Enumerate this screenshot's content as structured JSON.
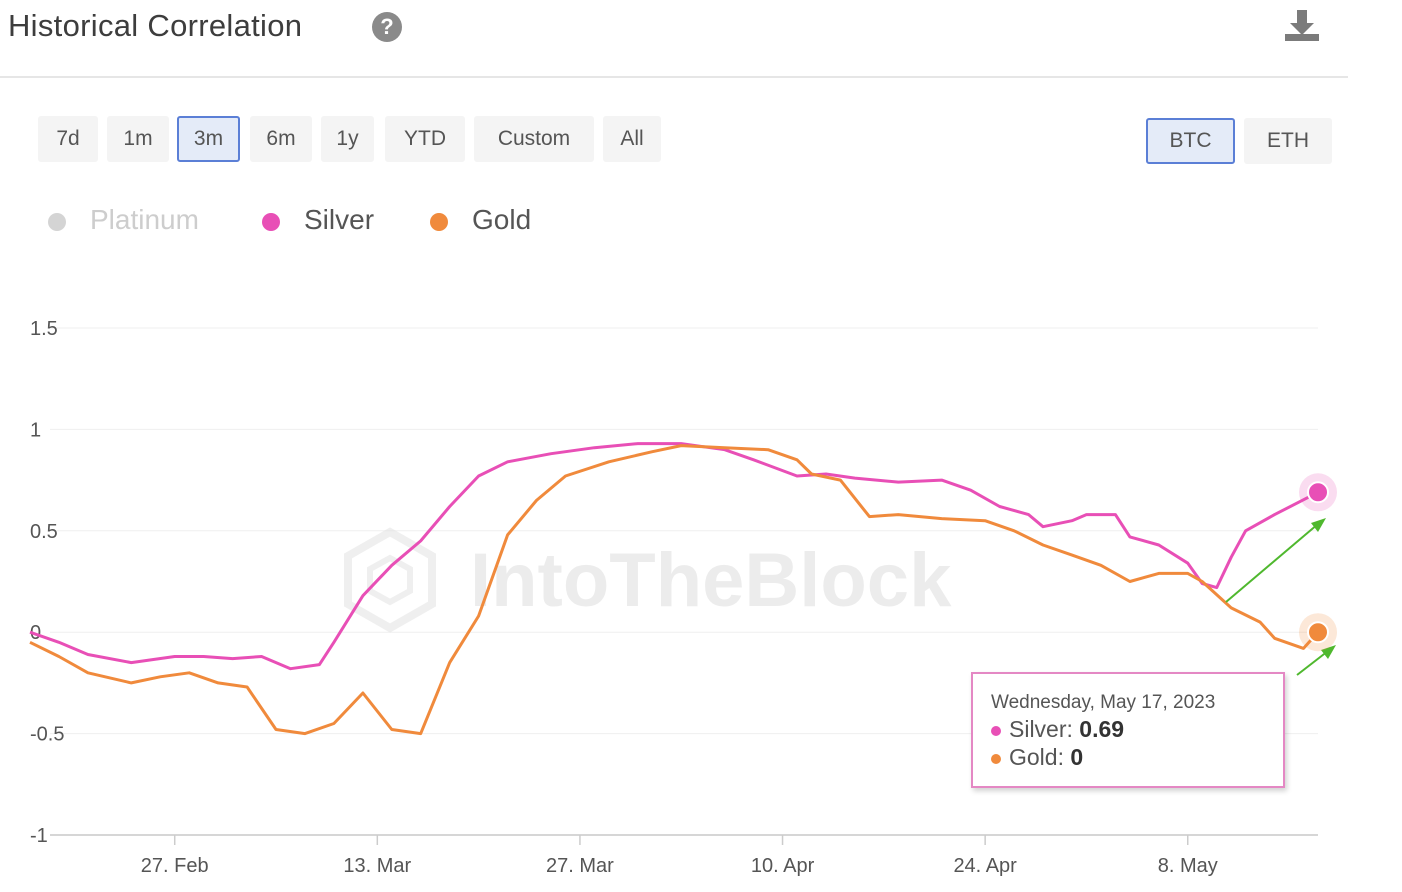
{
  "header": {
    "title": "Historical Correlation"
  },
  "range_buttons": [
    {
      "label": "7d",
      "active": false
    },
    {
      "label": "1m",
      "active": false
    },
    {
      "label": "3m",
      "active": true
    },
    {
      "label": "6m",
      "active": false
    },
    {
      "label": "1y",
      "active": false
    },
    {
      "label": "YTD",
      "active": false
    },
    {
      "label": "Custom",
      "active": false
    },
    {
      "label": "All",
      "active": false
    }
  ],
  "asset_buttons": [
    {
      "label": "BTC",
      "active": true
    },
    {
      "label": "ETH",
      "active": false
    }
  ],
  "legend": [
    {
      "label": "Platinum",
      "color": "#cfcfcf",
      "hidden": true
    },
    {
      "label": "Silver",
      "color": "#e84fb6",
      "hidden": false
    },
    {
      "label": "Gold",
      "color": "#f08a3c",
      "hidden": false
    }
  ],
  "tooltip": {
    "date": "Wednesday, May 17, 2023",
    "silver_label": "Silver: ",
    "silver_value": "0.69",
    "gold_label": "Gold: ",
    "gold_value": "0"
  },
  "watermark": "IntoTheBlock",
  "chart_data": {
    "type": "line",
    "x_start": "2023-02-17",
    "x_end": "2023-05-17",
    "xticks": [
      {
        "label": "27. Feb",
        "date": "2023-02-27"
      },
      {
        "label": "13. Mar",
        "date": "2023-03-13"
      },
      {
        "label": "27. Mar",
        "date": "2023-03-27"
      },
      {
        "label": "10. Apr",
        "date": "2023-04-10"
      },
      {
        "label": "24. Apr",
        "date": "2023-04-24"
      },
      {
        "label": "8. May",
        "date": "2023-05-08"
      }
    ],
    "yticks": [
      1.5,
      1,
      0.5,
      0,
      -0.5,
      -1
    ],
    "ylim": [
      -1,
      1.5
    ],
    "series": [
      {
        "name": "Silver",
        "color": "#e84fb6",
        "points": [
          [
            "2023-02-17",
            0.0
          ],
          [
            "2023-02-19",
            -0.05
          ],
          [
            "2023-02-21",
            -0.11
          ],
          [
            "2023-02-24",
            -0.15
          ],
          [
            "2023-02-27",
            -0.12
          ],
          [
            "2023-03-01",
            -0.12
          ],
          [
            "2023-03-03",
            -0.13
          ],
          [
            "2023-03-05",
            -0.12
          ],
          [
            "2023-03-07",
            -0.18
          ],
          [
            "2023-03-09",
            -0.16
          ],
          [
            "2023-03-10",
            -0.05
          ],
          [
            "2023-03-12",
            0.18
          ],
          [
            "2023-03-14",
            0.33
          ],
          [
            "2023-03-16",
            0.45
          ],
          [
            "2023-03-18",
            0.62
          ],
          [
            "2023-03-20",
            0.77
          ],
          [
            "2023-03-22",
            0.84
          ],
          [
            "2023-03-25",
            0.88
          ],
          [
            "2023-03-28",
            0.91
          ],
          [
            "2023-03-31",
            0.93
          ],
          [
            "2023-04-03",
            0.93
          ],
          [
            "2023-04-06",
            0.9
          ],
          [
            "2023-04-08",
            0.85
          ],
          [
            "2023-04-11",
            0.77
          ],
          [
            "2023-04-13",
            0.78
          ],
          [
            "2023-04-15",
            0.76
          ],
          [
            "2023-04-18",
            0.74
          ],
          [
            "2023-04-21",
            0.75
          ],
          [
            "2023-04-23",
            0.7
          ],
          [
            "2023-04-25",
            0.62
          ],
          [
            "2023-04-27",
            0.58
          ],
          [
            "2023-04-28",
            0.52
          ],
          [
            "2023-04-30",
            0.55
          ],
          [
            "2023-05-01",
            0.58
          ],
          [
            "2023-05-03",
            0.58
          ],
          [
            "2023-05-04",
            0.47
          ],
          [
            "2023-05-06",
            0.43
          ],
          [
            "2023-05-08",
            0.34
          ],
          [
            "2023-05-09",
            0.24
          ],
          [
            "2023-05-10",
            0.22
          ],
          [
            "2023-05-11",
            0.37
          ],
          [
            "2023-05-12",
            0.5
          ],
          [
            "2023-05-14",
            0.58
          ],
          [
            "2023-05-17",
            0.69
          ]
        ]
      },
      {
        "name": "Gold",
        "color": "#f08a3c",
        "points": [
          [
            "2023-02-17",
            -0.05
          ],
          [
            "2023-02-19",
            -0.12
          ],
          [
            "2023-02-21",
            -0.2
          ],
          [
            "2023-02-24",
            -0.25
          ],
          [
            "2023-02-26",
            -0.22
          ],
          [
            "2023-02-28",
            -0.2
          ],
          [
            "2023-03-02",
            -0.25
          ],
          [
            "2023-03-04",
            -0.27
          ],
          [
            "2023-03-06",
            -0.48
          ],
          [
            "2023-03-08",
            -0.5
          ],
          [
            "2023-03-10",
            -0.45
          ],
          [
            "2023-03-12",
            -0.3
          ],
          [
            "2023-03-14",
            -0.48
          ],
          [
            "2023-03-16",
            -0.5
          ],
          [
            "2023-03-18",
            -0.15
          ],
          [
            "2023-03-20",
            0.08
          ],
          [
            "2023-03-22",
            0.48
          ],
          [
            "2023-03-24",
            0.65
          ],
          [
            "2023-03-26",
            0.77
          ],
          [
            "2023-03-29",
            0.84
          ],
          [
            "2023-04-01",
            0.89
          ],
          [
            "2023-04-03",
            0.92
          ],
          [
            "2023-04-06",
            0.91
          ],
          [
            "2023-04-09",
            0.9
          ],
          [
            "2023-04-11",
            0.85
          ],
          [
            "2023-04-12",
            0.78
          ],
          [
            "2023-04-14",
            0.75
          ],
          [
            "2023-04-16",
            0.57
          ],
          [
            "2023-04-18",
            0.58
          ],
          [
            "2023-04-21",
            0.56
          ],
          [
            "2023-04-24",
            0.55
          ],
          [
            "2023-04-26",
            0.5
          ],
          [
            "2023-04-28",
            0.43
          ],
          [
            "2023-04-30",
            0.38
          ],
          [
            "2023-05-02",
            0.33
          ],
          [
            "2023-05-04",
            0.25
          ],
          [
            "2023-05-06",
            0.29
          ],
          [
            "2023-05-08",
            0.29
          ],
          [
            "2023-05-09",
            0.25
          ],
          [
            "2023-05-11",
            0.12
          ],
          [
            "2023-05-13",
            0.05
          ],
          [
            "2023-05-14",
            -0.03
          ],
          [
            "2023-05-16",
            -0.08
          ],
          [
            "2023-05-17",
            0.0
          ]
        ]
      }
    ]
  }
}
